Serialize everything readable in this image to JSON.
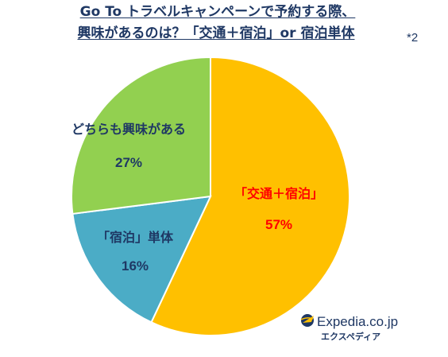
{
  "title_line_1": "Go To トラベルキャンペーンで予約する際、",
  "title_line_2": "興味があるのは？「交通＋宿泊」or 宿泊単体",
  "footnote": "*2",
  "chart_data": {
    "type": "pie",
    "slices": [
      {
        "label": "「交通＋宿泊」",
        "value": 57,
        "value_label": "57%",
        "color": "#ffc000",
        "label_color": "#ff0000"
      },
      {
        "label": "「宿泊」単体",
        "value": 16,
        "value_label": "16%",
        "color": "#4bacc6",
        "label_color": "#1f3864"
      },
      {
        "label": "どちらも興味がある",
        "value": 27,
        "value_label": "27%",
        "color": "#92d050",
        "label_color": "#1f3864"
      }
    ],
    "start_angle_deg": 0,
    "direction": "clockwise",
    "slice_border_color": "#ffffff",
    "legend": "none"
  },
  "logo": {
    "brand": "Expedia.co.jp",
    "katakana": "エクスペディア",
    "icon": "airplane-globe-icon",
    "color": "#1f3864",
    "icon_color": "#ffc000"
  }
}
